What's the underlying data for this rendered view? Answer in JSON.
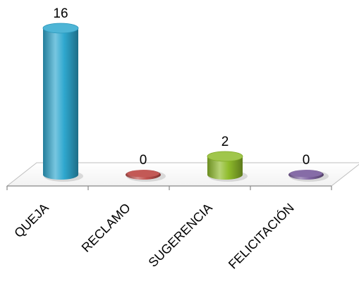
{
  "chart_data": {
    "type": "bar",
    "style": "3d-cylinder",
    "categories": [
      "QUEJA",
      "RECLAMO",
      "SUGERENCIA",
      "FELICITACIÓN"
    ],
    "values": [
      16,
      0,
      2,
      0
    ],
    "colors": [
      "#2FA8CF",
      "#C0504D",
      "#8FBC2B",
      "#8064A2"
    ],
    "title": "",
    "xlabel": "",
    "ylabel": "",
    "ylim": [
      0,
      16
    ],
    "grid": false,
    "legend": "none"
  }
}
